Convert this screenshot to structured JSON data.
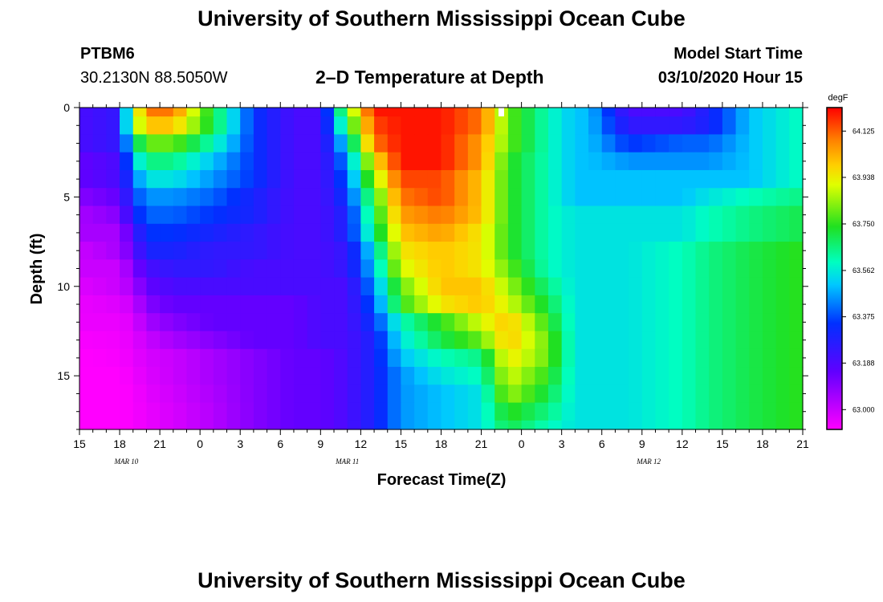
{
  "page": {
    "title_top": "University of Southern Mississippi Ocean Cube",
    "title_bottom": "University of Southern Mississippi Ocean Cube",
    "station_id": "PTBM6",
    "station_coords": "30.2130N 88.5050W",
    "plot_title": "2–D Temperature at Depth",
    "model_start_label": "Model Start Time",
    "model_start_value": "03/10/2020 Hour 15"
  },
  "chart_data": {
    "type": "heatmap",
    "title": "2–D Temperature at Depth",
    "xlabel": "Forecast Time(Z)",
    "ylabel": "Depth (ft)",
    "x_tick_labels": [
      "15",
      "18",
      "21",
      "0",
      "3",
      "6",
      "9",
      "12",
      "15",
      "18",
      "21",
      "0",
      "3",
      "6",
      "9",
      "12",
      "15",
      "18",
      "21"
    ],
    "x_hours": [
      0,
      54
    ],
    "date_labels": [
      {
        "text": "MAR 10",
        "hour": 3.5
      },
      {
        "text": "MAR 11",
        "hour": 20
      },
      {
        "text": "MAR 12",
        "hour": 42.5
      }
    ],
    "y_ticks": [
      0,
      5,
      10,
      15
    ],
    "ylim": [
      0,
      18
    ],
    "y_inverted": true,
    "colorbar": {
      "unit": "degF",
      "min": 62.92,
      "max": 64.22,
      "tick_labels": [
        "64.125",
        "63.938",
        "63.750",
        "63.562",
        "63.375",
        "63.188",
        "63.000"
      ],
      "tick_values": [
        64.125,
        63.938,
        63.75,
        63.562,
        63.375,
        63.188,
        63.0
      ]
    },
    "depth_rows": [
      0,
      1,
      2,
      3,
      4,
      5,
      6,
      7,
      8,
      9,
      10,
      11,
      12,
      13,
      14,
      15,
      16,
      17,
      18
    ],
    "time_hours": [
      0,
      3,
      4,
      5,
      7,
      10,
      13,
      16,
      18,
      20,
      22,
      24,
      27,
      30,
      32,
      35,
      37,
      38,
      41,
      45,
      47,
      50,
      54
    ],
    "temperature_grid_degF": [
      [
        63.2,
        63.25,
        63.8,
        64.1,
        64.1,
        63.7,
        63.35,
        63.2,
        63.2,
        63.8,
        64.2,
        64.2,
        64.2,
        64.1,
        63.8,
        63.6,
        63.5,
        63.5,
        63.2,
        63.2,
        63.3,
        63.5,
        63.6
      ],
      [
        63.2,
        63.25,
        63.8,
        64.0,
        64.0,
        63.7,
        63.35,
        63.2,
        63.2,
        63.7,
        64.15,
        64.2,
        64.2,
        64.1,
        63.8,
        63.6,
        63.5,
        63.5,
        63.25,
        63.25,
        63.3,
        63.5,
        63.6
      ],
      [
        63.2,
        63.25,
        63.6,
        63.8,
        63.8,
        63.6,
        63.35,
        63.2,
        63.2,
        63.55,
        64.1,
        64.2,
        64.2,
        64.05,
        63.8,
        63.6,
        63.5,
        63.5,
        63.35,
        63.4,
        63.4,
        63.5,
        63.6
      ],
      [
        63.15,
        63.2,
        63.5,
        63.65,
        63.65,
        63.5,
        63.35,
        63.2,
        63.2,
        63.45,
        63.95,
        64.2,
        64.2,
        64.05,
        63.75,
        63.6,
        63.5,
        63.5,
        63.45,
        63.45,
        63.45,
        63.5,
        63.6
      ],
      [
        63.15,
        63.2,
        63.4,
        63.55,
        63.55,
        63.45,
        63.35,
        63.2,
        63.2,
        63.4,
        63.85,
        64.15,
        64.15,
        64.0,
        63.75,
        63.6,
        63.5,
        63.5,
        63.5,
        63.5,
        63.5,
        63.5,
        63.6
      ],
      [
        63.1,
        63.15,
        63.35,
        63.45,
        63.45,
        63.4,
        63.3,
        63.2,
        63.2,
        63.35,
        63.75,
        64.1,
        64.15,
        64.0,
        63.75,
        63.6,
        63.5,
        63.5,
        63.5,
        63.5,
        63.55,
        63.6,
        63.65
      ],
      [
        63.05,
        63.1,
        63.3,
        63.4,
        63.4,
        63.35,
        63.3,
        63.2,
        63.2,
        63.3,
        63.7,
        64.05,
        64.1,
        64.0,
        63.75,
        63.6,
        63.55,
        63.55,
        63.55,
        63.55,
        63.6,
        63.65,
        63.7
      ],
      [
        63.05,
        63.05,
        63.2,
        63.35,
        63.35,
        63.3,
        63.25,
        63.2,
        63.2,
        63.3,
        63.65,
        64.0,
        64.05,
        63.95,
        63.75,
        63.6,
        63.55,
        63.55,
        63.55,
        63.55,
        63.6,
        63.65,
        63.7
      ],
      [
        63.0,
        63.05,
        63.15,
        63.3,
        63.3,
        63.25,
        63.25,
        63.2,
        63.2,
        63.25,
        63.55,
        63.95,
        64.0,
        63.95,
        63.75,
        63.6,
        63.55,
        63.55,
        63.55,
        63.6,
        63.65,
        63.7,
        63.75
      ],
      [
        63.0,
        63.0,
        63.1,
        63.2,
        63.25,
        63.25,
        63.2,
        63.2,
        63.2,
        63.25,
        63.5,
        63.9,
        64.0,
        63.95,
        63.8,
        63.6,
        63.55,
        63.55,
        63.55,
        63.6,
        63.65,
        63.7,
        63.75
      ],
      [
        62.97,
        63.0,
        63.05,
        63.15,
        63.2,
        63.2,
        63.2,
        63.2,
        63.2,
        63.2,
        63.45,
        63.8,
        64.0,
        64.0,
        63.85,
        63.65,
        63.55,
        63.55,
        63.55,
        63.6,
        63.65,
        63.7,
        63.75
      ],
      [
        62.95,
        62.97,
        63.0,
        63.1,
        63.15,
        63.15,
        63.15,
        63.15,
        63.2,
        63.2,
        63.4,
        63.75,
        63.95,
        64.0,
        63.9,
        63.7,
        63.55,
        63.55,
        63.55,
        63.6,
        63.65,
        63.7,
        63.75
      ],
      [
        62.95,
        62.95,
        62.97,
        63.05,
        63.1,
        63.15,
        63.15,
        63.15,
        63.2,
        63.2,
        63.35,
        63.6,
        63.75,
        63.9,
        64.0,
        63.75,
        63.55,
        63.55,
        63.55,
        63.6,
        63.65,
        63.7,
        63.75
      ],
      [
        62.93,
        62.94,
        62.96,
        63.0,
        63.05,
        63.1,
        63.15,
        63.15,
        63.2,
        63.2,
        63.3,
        63.55,
        63.7,
        63.8,
        64.0,
        63.8,
        63.55,
        63.55,
        63.55,
        63.6,
        63.65,
        63.7,
        63.75
      ],
      [
        62.92,
        62.93,
        62.95,
        62.98,
        63.0,
        63.05,
        63.1,
        63.15,
        63.15,
        63.2,
        63.3,
        63.5,
        63.6,
        63.65,
        63.95,
        63.8,
        63.55,
        63.55,
        63.55,
        63.6,
        63.65,
        63.7,
        63.75
      ],
      [
        62.92,
        62.92,
        62.94,
        62.97,
        63.0,
        63.05,
        63.1,
        63.15,
        63.15,
        63.2,
        63.3,
        63.45,
        63.55,
        63.6,
        63.9,
        63.75,
        63.55,
        63.55,
        63.55,
        63.6,
        63.65,
        63.7,
        63.75
      ],
      [
        62.92,
        62.92,
        62.93,
        62.96,
        62.99,
        63.04,
        63.1,
        63.15,
        63.15,
        63.2,
        63.3,
        63.45,
        63.5,
        63.55,
        63.85,
        63.7,
        63.55,
        63.55,
        63.55,
        63.6,
        63.65,
        63.7,
        63.75
      ],
      [
        62.92,
        62.92,
        62.93,
        62.95,
        62.98,
        63.03,
        63.1,
        63.15,
        63.15,
        63.2,
        63.3,
        63.45,
        63.5,
        63.55,
        63.75,
        63.65,
        63.55,
        63.55,
        63.55,
        63.6,
        63.65,
        63.7,
        63.75
      ],
      [
        62.92,
        62.92,
        62.93,
        62.95,
        62.98,
        63.03,
        63.1,
        63.15,
        63.15,
        63.2,
        63.3,
        63.45,
        63.5,
        63.55,
        63.7,
        63.6,
        63.55,
        63.55,
        63.55,
        63.6,
        63.65,
        63.7,
        63.75
      ]
    ]
  }
}
